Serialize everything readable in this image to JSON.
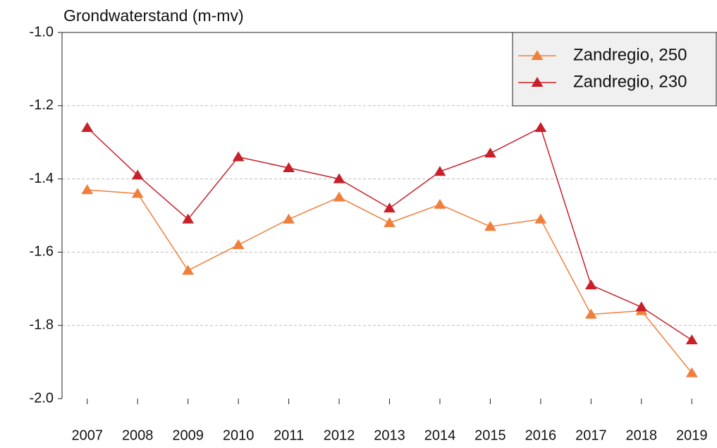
{
  "chart_data": {
    "type": "line",
    "title": "Grondwaterstand (m-mv)",
    "categories": [
      "2007",
      "2008",
      "2009",
      "2010",
      "2011",
      "2012",
      "2013",
      "2014",
      "2015",
      "2016",
      "2017",
      "2018",
      "2019"
    ],
    "series": [
      {
        "name": "Zandregio, 250",
        "color": "#f07f3c",
        "values": [
          -1.43,
          -1.44,
          -1.65,
          -1.58,
          -1.51,
          -1.45,
          -1.52,
          -1.47,
          -1.53,
          -1.51,
          -1.77,
          -1.76,
          -1.93
        ]
      },
      {
        "name": "Zandregio, 230",
        "color": "#c8202a",
        "values": [
          -1.26,
          -1.39,
          -1.51,
          -1.34,
          -1.37,
          -1.4,
          -1.48,
          -1.38,
          -1.33,
          -1.26,
          -1.69,
          -1.75,
          -1.84
        ]
      }
    ],
    "ylim": [
      -2.0,
      -1.0
    ],
    "yticks": [
      {
        "value": -1.0,
        "label": "-1.0"
      },
      -1.2,
      -1.4,
      -1.6,
      -1.8,
      {
        "value": -2.0,
        "label": "-2.0"
      }
    ],
    "grid": true,
    "legend": "top-right",
    "marker": "triangle"
  }
}
